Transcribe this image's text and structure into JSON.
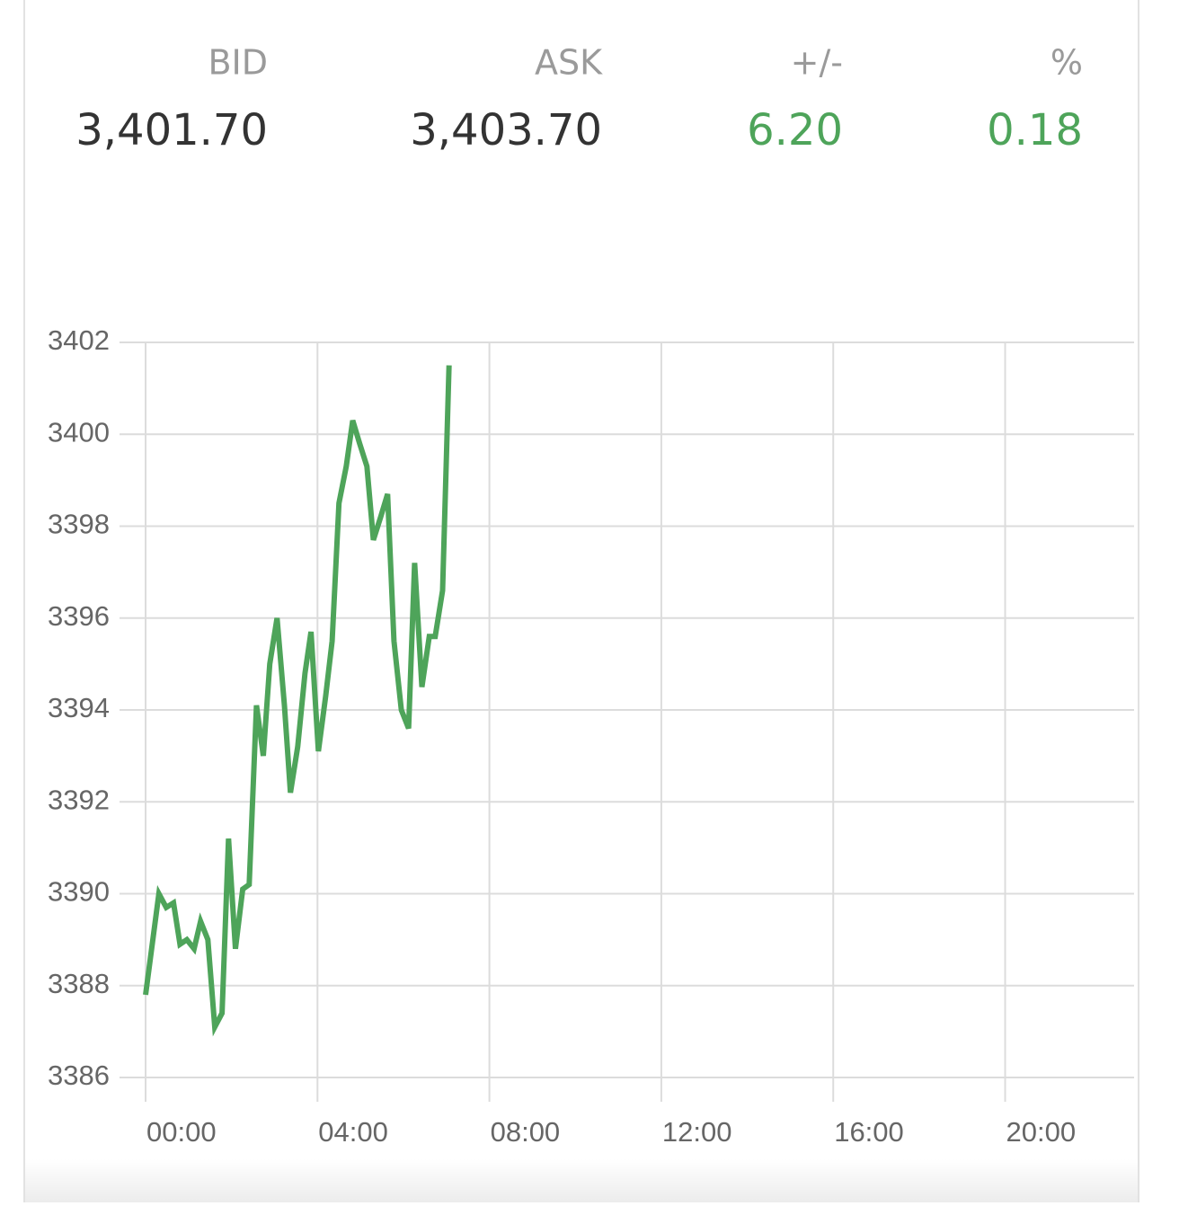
{
  "quote": [
    {
      "label": "BID",
      "value": "3,401.70",
      "color": "#333333"
    },
    {
      "label": "ASK",
      "value": "3,403.70",
      "color": "#333333"
    },
    {
      "label": "+/-",
      "value": "6.20",
      "color": "#4ea45a"
    },
    {
      "label": "%",
      "value": "0.18",
      "color": "#4ea45a"
    }
  ],
  "chart_data": {
    "type": "line",
    "x": [
      0,
      0.31,
      0.48,
      0.65,
      0.8,
      0.96,
      1.13,
      1.28,
      1.45,
      1.61,
      1.78,
      1.93,
      2.09,
      2.26,
      2.41,
      2.58,
      2.74,
      2.89,
      3.06,
      3.23,
      3.37,
      3.54,
      3.71,
      3.85,
      4.02,
      4.19,
      4.34,
      4.5,
      4.67,
      4.82,
      4.98,
      5.15,
      5.3,
      5.47,
      5.63,
      5.78,
      5.95,
      6.12,
      6.26,
      6.43,
      6.6,
      6.74,
      6.91,
      7.06
    ],
    "series": [
      {
        "color": "#4ea45a",
        "values": [
          3387.8,
          3390.0,
          3389.7,
          3389.8,
          3388.9,
          3389.0,
          3388.8,
          3389.4,
          3389.0,
          3387.1,
          3387.4,
          3391.2,
          3388.8,
          3390.1,
          3390.2,
          3394.1,
          3393.0,
          3395.0,
          3396.0,
          3394.1,
          3392.2,
          3393.2,
          3394.8,
          3395.7,
          3393.1,
          3394.3,
          3395.5,
          3398.5,
          3399.3,
          3400.3,
          3399.8,
          3399.3,
          3397.7,
          3398.2,
          3398.7,
          3395.5,
          3394.0,
          3393.6,
          3397.2,
          3394.5,
          3395.6,
          3395.6,
          3396.6,
          3401.5
        ]
      }
    ],
    "xlim": [
      0,
      23
    ],
    "xticks": [
      {
        "value": 0,
        "label": "00:00"
      },
      {
        "value": 4,
        "label": "04:00"
      },
      {
        "value": 8,
        "label": "08:00"
      },
      {
        "value": 12,
        "label": "12:00"
      },
      {
        "value": 16,
        "label": "16:00"
      },
      {
        "value": 20,
        "label": "20:00"
      }
    ],
    "ylim": [
      3386,
      3402
    ],
    "yticks": [
      3386,
      3388,
      3390,
      3392,
      3394,
      3396,
      3398,
      3400,
      3402
    ],
    "grid": true
  }
}
